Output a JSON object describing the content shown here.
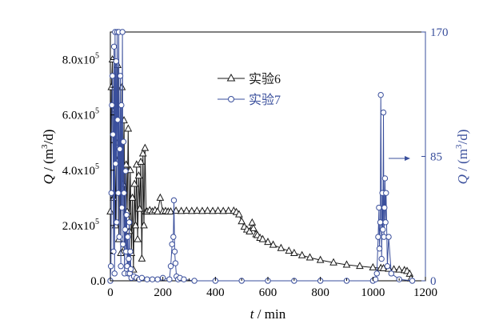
{
  "chart_data": {
    "type": "line",
    "title": "",
    "xlabel": {
      "italic": "t",
      "rest": " / min"
    },
    "ylabel_left": {
      "italic": "Q",
      "rest": " / (m",
      "sup": "3",
      "tail": "/d)"
    },
    "ylabel_right": {
      "italic": "Q",
      "rest": " / (m",
      "sup": "3",
      "tail": "/d)"
    },
    "xlim": [
      0,
      1200
    ],
    "ylim_left": [
      0,
      900000
    ],
    "ylim_right": [
      0,
      170
    ],
    "x_ticks": [
      "0",
      "200",
      "400",
      "600",
      "800",
      "1000",
      "1200"
    ],
    "y_left_ticks": [
      {
        "value": 0,
        "mant": "0.0",
        "exp": ""
      },
      {
        "value": 200000,
        "mant": "2.0x10",
        "exp": "5"
      },
      {
        "value": 400000,
        "mant": "4.0x10",
        "exp": "5"
      },
      {
        "value": 600000,
        "mant": "6.0x10",
        "exp": "5"
      },
      {
        "value": 800000,
        "mant": "8.0x10",
        "exp": "5"
      }
    ],
    "y_right_ticks": [
      "0",
      "85",
      "170"
    ],
    "legend_position": "top-center",
    "annotation": "arrow pointing to right axis",
    "series": [
      {
        "name": "实验6",
        "axis": "left",
        "marker": "triangle",
        "color": "#1a1a1a",
        "x": [
          0,
          4,
          8,
          12,
          16,
          20,
          24,
          28,
          32,
          36,
          40,
          44,
          48,
          52,
          56,
          60,
          64,
          68,
          72,
          76,
          80,
          84,
          88,
          92,
          96,
          100,
          104,
          108,
          112,
          116,
          120,
          124,
          128,
          132,
          136,
          140,
          150,
          160,
          170,
          180,
          190,
          200,
          210,
          220,
          230,
          250,
          270,
          290,
          310,
          330,
          350,
          370,
          390,
          410,
          430,
          450,
          470,
          480,
          490,
          500,
          510,
          520,
          530,
          540,
          545,
          555,
          560,
          570,
          580,
          600,
          620,
          650,
          680,
          700,
          730,
          760,
          800,
          850,
          900,
          950,
          1000,
          1030,
          1040,
          1060,
          1080,
          1100,
          1120,
          1130,
          1140,
          1145
        ],
        "y": [
          250000,
          700000,
          800000,
          300000,
          620000,
          200000,
          500000,
          780000,
          150000,
          450000,
          100000,
          700000,
          350000,
          580000,
          120000,
          420000,
          250000,
          550000,
          180000,
          400000,
          100000,
          300000,
          40000,
          350000,
          200000,
          420000,
          150000,
          380000,
          260000,
          430000,
          80000,
          460000,
          200000,
          480000,
          250000,
          250000,
          255000,
          250000,
          255000,
          250000,
          300000,
          250000,
          252000,
          250000,
          250000,
          253000,
          252000,
          253000,
          252000,
          253000,
          252000,
          253000,
          252000,
          253000,
          252000,
          253000,
          253000,
          248000,
          240000,
          215000,
          195000,
          185000,
          178000,
          210000,
          190000,
          168000,
          165000,
          155000,
          150000,
          140000,
          130000,
          118000,
          108000,
          100000,
          92000,
          84000,
          75000,
          66000,
          58000,
          53000,
          48000,
          46000,
          45000,
          43000,
          41000,
          40000,
          38000,
          35000,
          25000,
          8000
        ]
      },
      {
        "name": "实验7",
        "axis": "right",
        "marker": "circle",
        "color": "#3a4f9c",
        "x": [
          0,
          2,
          4,
          6,
          8,
          10,
          12,
          14,
          16,
          18,
          20,
          22,
          24,
          26,
          28,
          30,
          32,
          34,
          36,
          38,
          40,
          42,
          44,
          46,
          48,
          50,
          52,
          54,
          56,
          58,
          60,
          62,
          64,
          66,
          68,
          70,
          72,
          74,
          76,
          78,
          80,
          90,
          100,
          110,
          120,
          140,
          160,
          180,
          200,
          225,
          230,
          235,
          240,
          242,
          245,
          248,
          252,
          258,
          265,
          280,
          320,
          400,
          500,
          600,
          700,
          800,
          900,
          1000,
          1010,
          1015,
          1020,
          1023,
          1025,
          1028,
          1030,
          1033,
          1036,
          1038,
          1040,
          1042,
          1044,
          1046,
          1048,
          1050,
          1055,
          1060,
          1070,
          1100,
          1150
        ],
        "y": [
          0,
          10,
          60,
          120,
          140,
          100,
          20,
          160,
          5,
          170,
          80,
          150,
          40,
          170,
          110,
          60,
          170,
          30,
          90,
          140,
          10,
          120,
          50,
          170,
          25,
          95,
          60,
          5,
          35,
          75,
          20,
          45,
          10,
          30,
          5,
          15,
          40,
          5,
          20,
          8,
          2,
          3,
          2,
          1,
          2,
          1,
          1,
          1,
          2,
          1,
          10,
          25,
          30,
          55,
          20,
          12,
          3,
          1,
          2,
          1,
          0,
          0,
          0,
          0,
          0,
          0,
          0,
          0,
          1,
          5,
          30,
          50,
          22,
          40,
          127,
          15,
          60,
          35,
          115,
          30,
          50,
          70,
          40,
          60,
          10,
          30,
          5,
          1,
          0
        ]
      }
    ]
  }
}
